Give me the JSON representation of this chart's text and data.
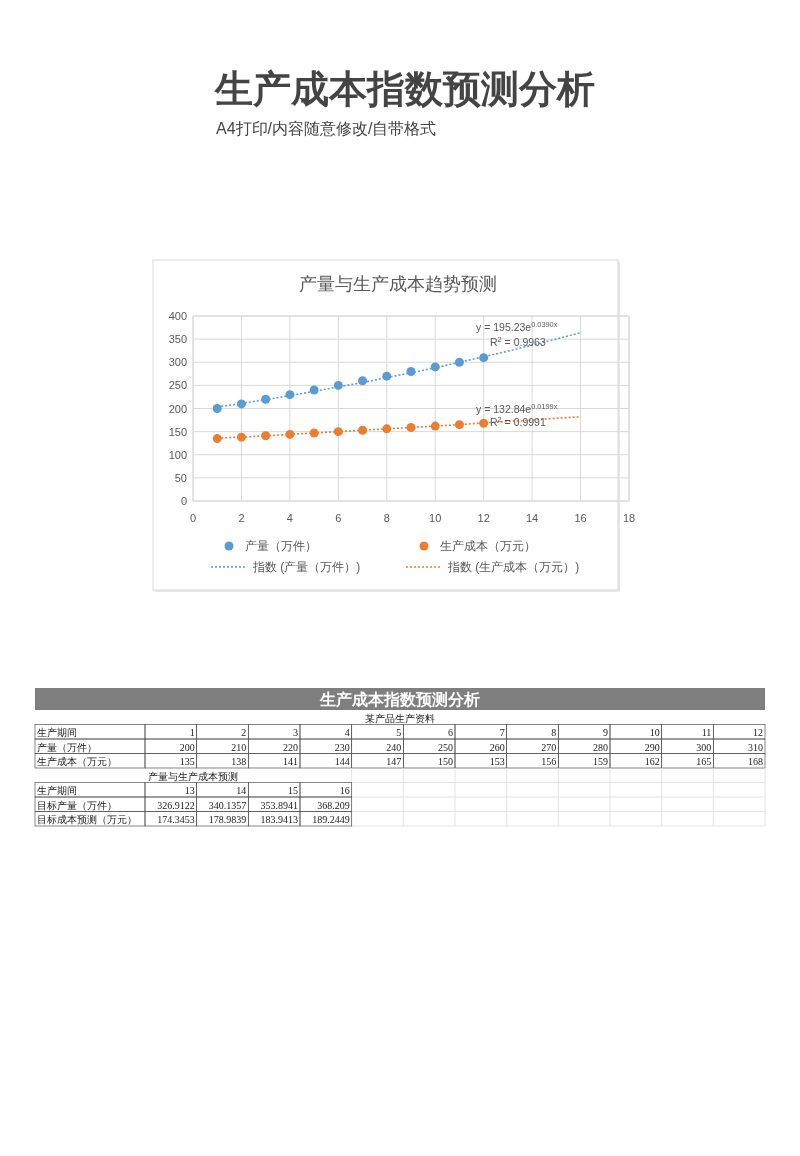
{
  "chart_data": [
    {
      "type": "other",
      "title": "生产成本指数预测分析",
      "subtitle": "A4打印/内容随意修改/自带格式"
    },
    {
      "type": "scatter",
      "title": "产量与生产成本趋势预测",
      "xlim": [
        0,
        18
      ],
      "xticks": [
        0,
        2,
        4,
        6,
        8,
        10,
        12,
        14,
        16,
        18
      ],
      "ylim": [
        0,
        400
      ],
      "yticks": [
        0,
        50,
        100,
        150,
        200,
        250,
        300,
        350,
        400
      ],
      "grid": true,
      "legend": "bottom",
      "marker": "circle",
      "series": [
        {
          "name": "产量（万件）",
          "color": "#5b9bd5",
          "x": [
            1,
            2,
            3,
            4,
            5,
            6,
            7,
            8,
            9,
            10,
            11,
            12
          ],
          "values": [
            200,
            210,
            220,
            230,
            240,
            250,
            260,
            270,
            280,
            290,
            300,
            310
          ]
        },
        {
          "name": "生产成本（万元）",
          "color": "#ed7d31",
          "x": [
            1,
            2,
            3,
            4,
            5,
            6,
            7,
            8,
            9,
            10,
            11,
            12
          ],
          "values": [
            135,
            138,
            141,
            144,
            147,
            150,
            153,
            156,
            159,
            162,
            165,
            168
          ]
        },
        {
          "name": "指数 (产量（万件）)",
          "type": "line",
          "line_style": "dotted",
          "marker": "none",
          "color": "#5b9bd5",
          "x": [
            1,
            2,
            3,
            4,
            5,
            6,
            7,
            8,
            9,
            10,
            11,
            12,
            13,
            14,
            15,
            16
          ],
          "values": [
            203,
            211,
            219,
            228,
            237,
            247,
            256,
            267,
            277,
            288,
            300,
            312,
            324,
            337,
            350,
            364
          ]
        },
        {
          "name": "指数 (生产成本（万元）)",
          "type": "line",
          "line_style": "dotted",
          "marker": "none",
          "color": "#ed7d31",
          "x": [
            1,
            2,
            3,
            4,
            5,
            6,
            7,
            8,
            9,
            10,
            11,
            12,
            13,
            14,
            15,
            16
          ],
          "values": [
            136,
            138,
            141,
            144,
            147,
            150,
            153,
            156,
            159,
            162,
            165,
            169,
            172,
            175,
            179,
            182
          ]
        }
      ],
      "annotations": [
        "y = 195.23e$^{0.0390x}$",
        "R$^{2}$ = 0.9963",
        "y = 132.84e$^{0.0199x}$",
        "R$^{2}$ = 0.9991"
      ]
    },
    {
      "type": "heatmap",
      "title": "生产成本指数预测分析",
      "subtitle": "某产品生产资料",
      "xlabel": "生产期间",
      "data_labels": true,
      "categories": [
        "1",
        "2",
        "3",
        "4",
        "5",
        "6",
        "7",
        "8",
        "9",
        "10",
        "11",
        "12"
      ],
      "y_categories": [
        "产量（万件）",
        "生产成本（万元）"
      ],
      "cells": [
        [
          200,
          210,
          220,
          230,
          240,
          250,
          260,
          270,
          280,
          290,
          300,
          310
        ],
        [
          135,
          138,
          141,
          144,
          147,
          150,
          153,
          156,
          159,
          162,
          165,
          168
        ]
      ]
    },
    {
      "type": "heatmap",
      "title": "产量与生产成本预测",
      "xlabel": "生产期间",
      "data_labels": true,
      "categories": [
        "13",
        "14",
        "15",
        "16"
      ],
      "y_categories": [
        "目标产量（万件）",
        "目标成本预测（万元）"
      ],
      "cells": [
        [
          326.9122,
          340.1357,
          353.8941,
          368.209
        ],
        [
          174.3453,
          178.9839,
          183.9413,
          189.2449
        ]
      ]
    }
  ]
}
